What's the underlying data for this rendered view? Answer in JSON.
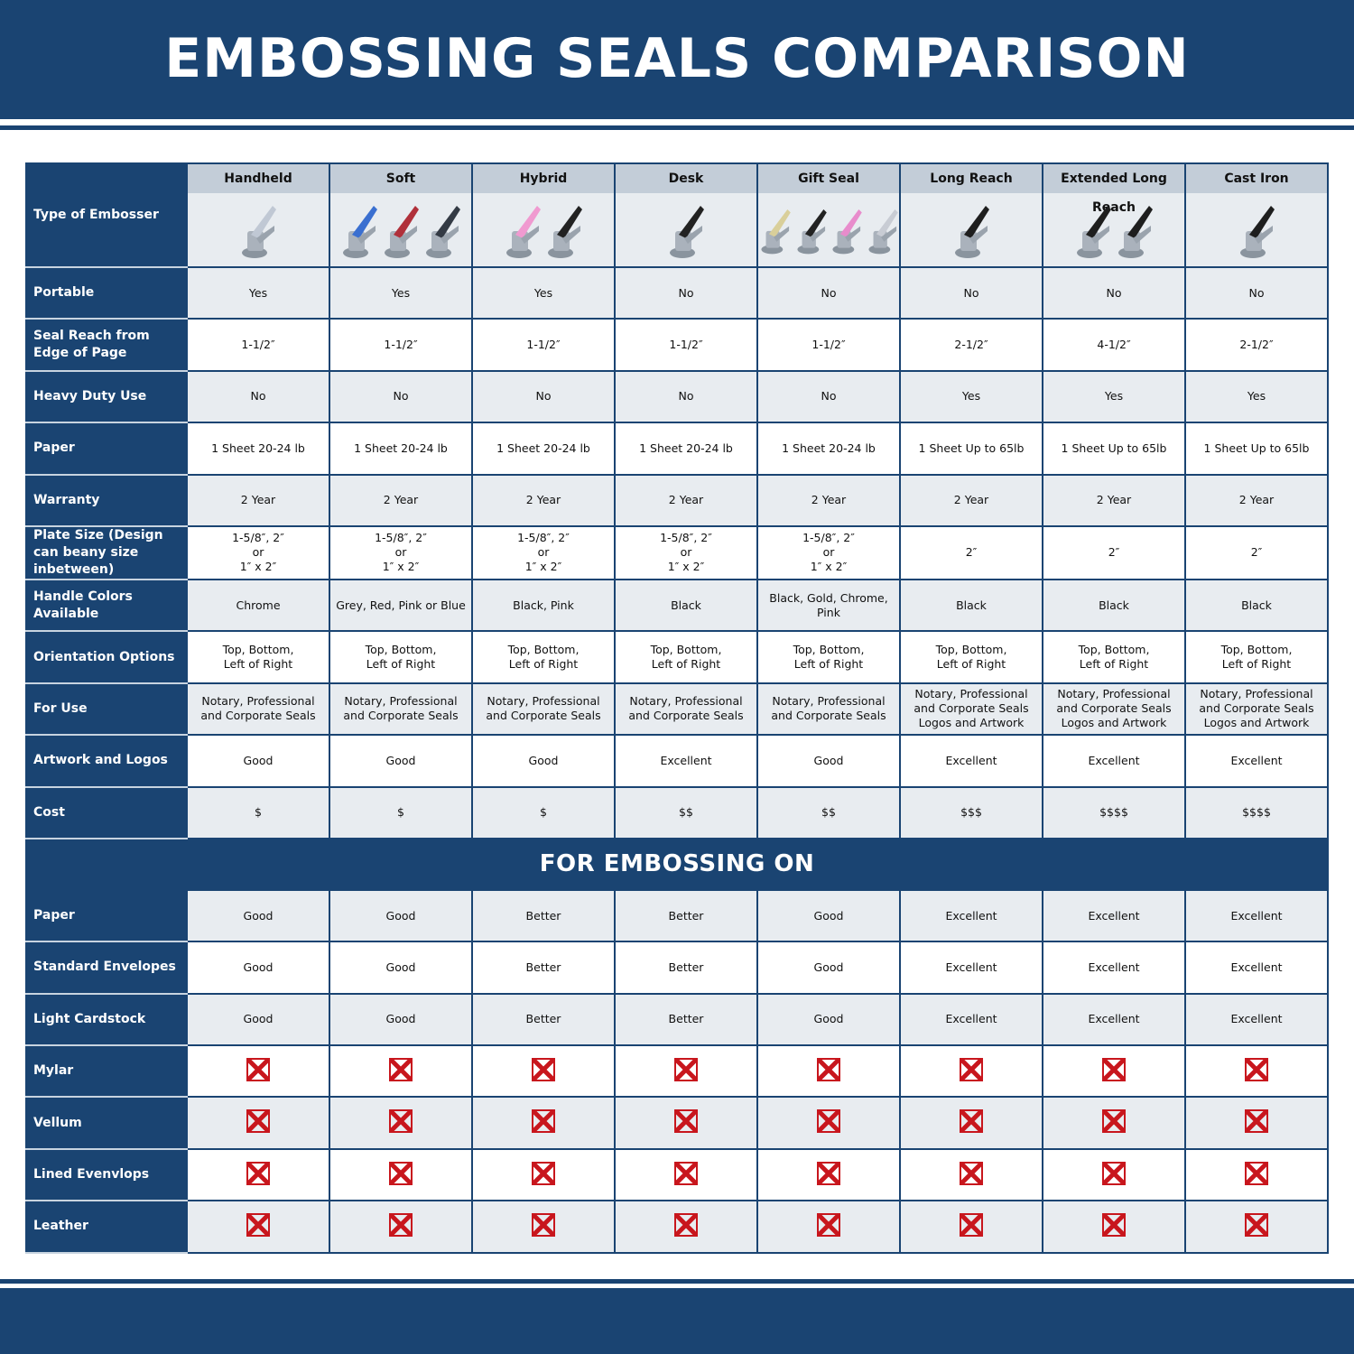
{
  "title": "EMBOSSING SEALS COMPARISON",
  "header_label": "Type of Embosser",
  "columns": [
    {
      "name": "Handheld",
      "image_colors": [
        "#c0c8d4"
      ]
    },
    {
      "name": "Soft",
      "image_colors": [
        "#3a6fd0",
        "#b0303a",
        "#333a44"
      ]
    },
    {
      "name": "Hybrid",
      "image_colors": [
        "#f09ad0",
        "#222222"
      ]
    },
    {
      "name": "Desk",
      "image_colors": [
        "#222222"
      ]
    },
    {
      "name": "Gift Seal",
      "image_colors": [
        "#d9cf9a",
        "#222222",
        "#e88ccc",
        "#c8ccd4"
      ]
    },
    {
      "name": "Long Reach",
      "image_colors": [
        "#1e1e1e"
      ]
    },
    {
      "name": "Extended Long Reach",
      "image_colors": [
        "#1e1e1e",
        "#1e1e1e"
      ]
    },
    {
      "name": "Cast Iron",
      "image_colors": [
        "#1e1e1e"
      ]
    }
  ],
  "rows": [
    {
      "label": "Portable",
      "values": [
        "Yes",
        "Yes",
        "Yes",
        "No",
        "No",
        "No",
        "No",
        "No"
      ]
    },
    {
      "label": "Seal Reach from Edge of Page",
      "values": [
        "1-1/2″",
        "1-1/2″",
        "1-1/2″",
        "1-1/2″",
        "1-1/2″",
        "2-1/2″",
        "4-1/2″",
        "2-1/2″"
      ]
    },
    {
      "label": "Heavy Duty Use",
      "values": [
        "No",
        "No",
        "No",
        "No",
        "No",
        "Yes",
        "Yes",
        "Yes"
      ]
    },
    {
      "label": "Paper",
      "values": [
        "1 Sheet 20-24 lb",
        "1 Sheet 20-24 lb",
        "1 Sheet 20-24 lb",
        "1 Sheet 20-24 lb",
        "1 Sheet 20-24 lb",
        "1 Sheet Up to 65lb",
        "1 Sheet Up to 65lb",
        "1 Sheet Up to 65lb"
      ]
    },
    {
      "label": "Warranty",
      "values": [
        "2 Year",
        "2 Year",
        "2 Year",
        "2 Year",
        "2 Year",
        "2 Year",
        "2 Year",
        "2 Year"
      ]
    },
    {
      "label": "Plate Size (Design can beany size inbetween)",
      "values": [
        "1-5/8″, 2″\nor\n1″ x 2″",
        "1-5/8″, 2″\nor\n1″ x 2″",
        "1-5/8″, 2″\nor\n1″ x 2″",
        "1-5/8″, 2″\nor\n1″ x 2″",
        "1-5/8″, 2″\nor\n1″ x 2″",
        "2″",
        "2″",
        "2″"
      ]
    },
    {
      "label": "Handle Colors Available",
      "values": [
        "Chrome",
        "Grey, Red, Pink or Blue",
        "Black, Pink",
        "Black",
        "Black, Gold, Chrome, Pink",
        "Black",
        "Black",
        "Black"
      ]
    },
    {
      "label": "Orientation Options",
      "values": [
        "Top, Bottom,\nLeft of Right",
        "Top, Bottom,\nLeft of Right",
        "Top, Bottom,\nLeft of Right",
        "Top, Bottom,\nLeft of Right",
        "Top, Bottom,\nLeft of Right",
        "Top, Bottom,\nLeft of Right",
        "Top, Bottom,\nLeft of Right",
        "Top, Bottom,\nLeft of Right"
      ]
    },
    {
      "label": "For Use",
      "values": [
        "Notary, Professional\nand Corporate Seals",
        "Notary, Professional\nand Corporate Seals",
        "Notary, Professional\nand Corporate Seals",
        "Notary, Professional\nand Corporate Seals",
        "Notary, Professional\nand Corporate Seals",
        "Notary, Professional\nand Corporate Seals\nLogos and Artwork",
        "Notary, Professional\nand Corporate Seals\nLogos and Artwork",
        "Notary, Professional\nand Corporate Seals\nLogos and Artwork"
      ]
    },
    {
      "label": "Artwork and Logos",
      "values": [
        "Good",
        "Good",
        "Good",
        "Excellent",
        "Good",
        "Excellent",
        "Excellent",
        "Excellent"
      ]
    },
    {
      "label": "Cost",
      "values": [
        "$",
        "$",
        "$",
        "$$",
        "$$",
        "$$$",
        "$$$$",
        "$$$$"
      ]
    }
  ],
  "section_title": "FOR EMBOSSING ON",
  "embossing_rows": [
    {
      "label": "Paper",
      "values": [
        "Good",
        "Good",
        "Better",
        "Better",
        "Good",
        "Excellent",
        "Excellent",
        "Excellent"
      ]
    },
    {
      "label": "Standard Envelopes",
      "values": [
        "Good",
        "Good",
        "Better",
        "Better",
        "Good",
        "Excellent",
        "Excellent",
        "Excellent"
      ]
    },
    {
      "label": "Light Cardstock",
      "values": [
        "Good",
        "Good",
        "Better",
        "Better",
        "Good",
        "Excellent",
        "Excellent",
        "Excellent"
      ]
    },
    {
      "label": "Mylar",
      "icon": "red-x-icon"
    },
    {
      "label": "Vellum",
      "icon": "red-x-icon"
    },
    {
      "label": "Lined Evenvlops",
      "icon": "red-x-icon"
    },
    {
      "label": "Leather",
      "icon": "red-x-icon"
    }
  ],
  "colors": {
    "brand_blue": "#1a4472",
    "header_gray": "#c3cdd8",
    "row_alt": "#e8ecf0",
    "x_red": "#c8161d"
  }
}
